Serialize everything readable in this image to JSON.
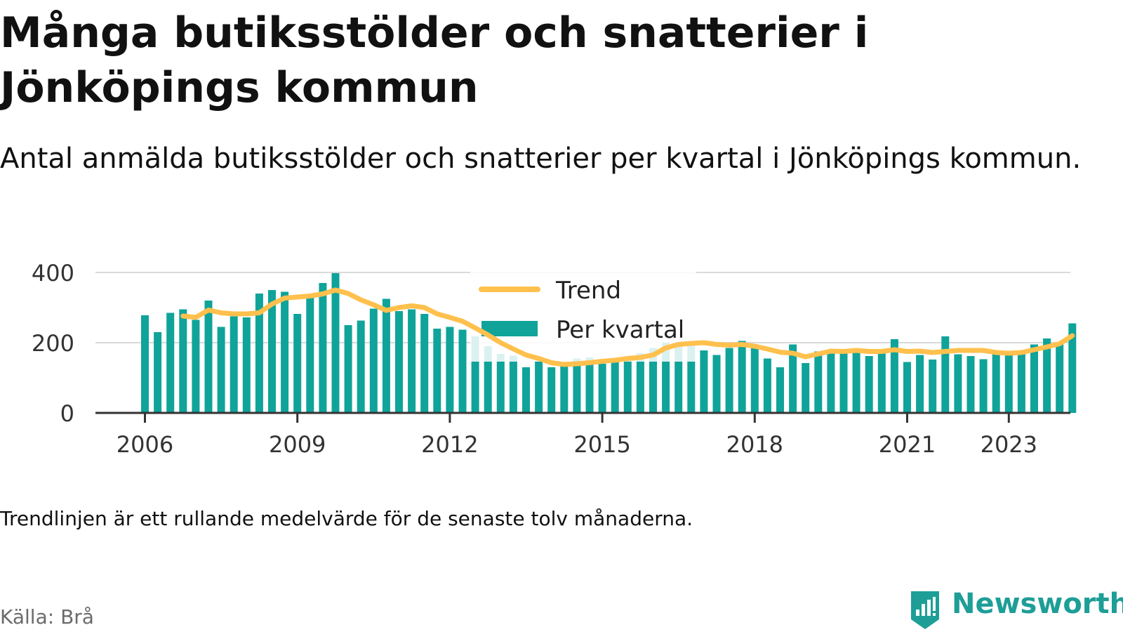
{
  "title": "Många butiksstölder och snatterier i Jönköpings kommun",
  "subtitle": "Antal anmälda butiksstölder och snatterier per kvartal i Jönköpings kommun.",
  "note": "Trendlinjen är ett rullande medelvärde för de senaste tolv månaderna.",
  "source": "Källa: Brå",
  "brand": {
    "name": "Newsworthy",
    "icon": "newsworthy-logo-icon"
  },
  "colors": {
    "bars": "#0fa39a",
    "trend": "#ffc04d",
    "grid": "#d9d9d9",
    "axis": "#333333",
    "brand": "#1d9e97"
  },
  "chart_data": {
    "type": "bar",
    "title": "Många butiksstölder och snatterier i Jönköpings kommun",
    "ylim": [
      0,
      400
    ],
    "yticks": [
      0,
      200,
      400
    ],
    "xticks": [
      "2006",
      "2009",
      "2012",
      "2015",
      "2018",
      "2021",
      "2023"
    ],
    "grid": true,
    "legend_position": "top-center",
    "legend": [
      "Trend",
      "Per kvartal"
    ],
    "quarters_start": "2006 Q1",
    "series": [
      {
        "name": "Per kvartal",
        "type": "bar",
        "values": [
          278,
          230,
          285,
          295,
          265,
          320,
          245,
          275,
          272,
          340,
          350,
          345,
          282,
          335,
          370,
          398,
          250,
          263,
          297,
          325,
          290,
          295,
          282,
          240,
          245,
          237,
          218,
          190,
          168,
          163,
          130,
          148,
          130,
          135,
          155,
          158,
          140,
          150,
          160,
          170,
          185,
          200,
          198,
          195,
          178,
          165,
          185,
          205,
          195,
          155,
          130,
          195,
          142,
          175,
          180,
          172,
          180,
          162,
          177,
          210,
          145,
          165,
          152,
          218,
          167,
          162,
          153,
          175,
          168,
          178,
          195,
          212,
          195,
          255
        ]
      },
      {
        "name": "Trend",
        "type": "line",
        "values": [
          null,
          null,
          null,
          276,
          272,
          293,
          285,
          282,
          282,
          285,
          310,
          327,
          330,
          333,
          339,
          350,
          340,
          322,
          308,
          292,
          300,
          305,
          300,
          282,
          272,
          261,
          242,
          222,
          200,
          182,
          165,
          155,
          143,
          138,
          140,
          143,
          147,
          150,
          155,
          158,
          165,
          185,
          195,
          198,
          200,
          195,
          193,
          195,
          190,
          182,
          173,
          170,
          160,
          168,
          176,
          175,
          178,
          175,
          175,
          180,
          175,
          176,
          172,
          175,
          178,
          178,
          178,
          172,
          170,
          172,
          180,
          188,
          197,
          220
        ]
      }
    ]
  }
}
